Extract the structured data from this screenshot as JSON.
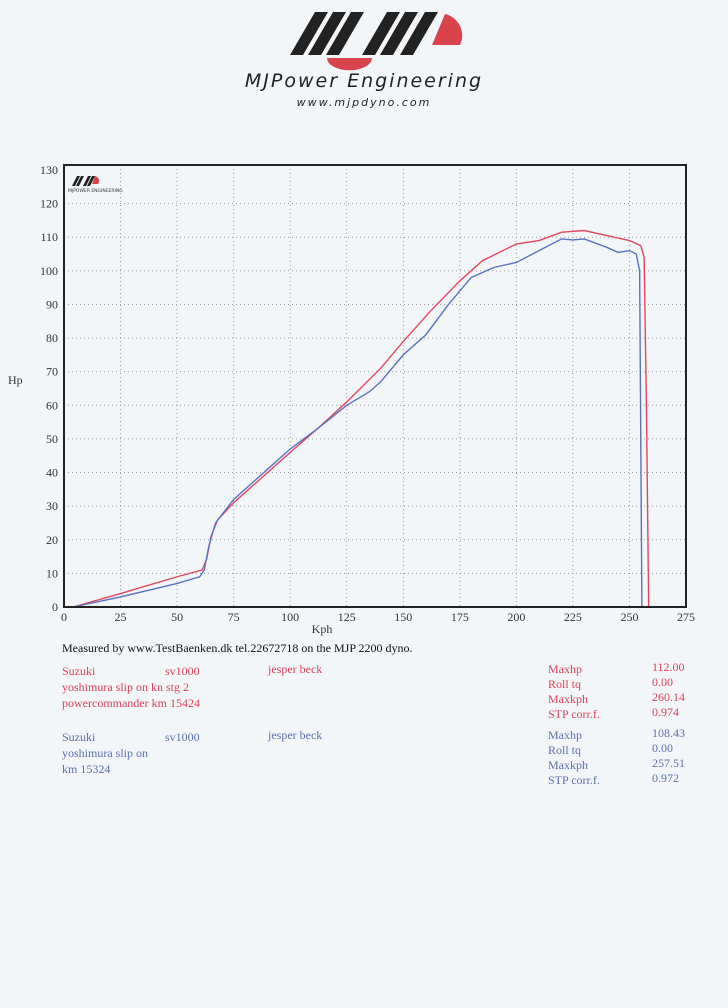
{
  "header": {
    "brand": "MJPower Engineering",
    "url": "www.mjpdyno.com",
    "logo_text": "MJP"
  },
  "chart_data": {
    "type": "line",
    "title": "",
    "xlabel": "Kph",
    "ylabel": "Hp",
    "xlim": [
      0,
      275
    ],
    "ylim": [
      0,
      130
    ],
    "grid": true,
    "x_ticks": [
      0,
      25,
      50,
      75,
      100,
      125,
      150,
      175,
      200,
      225,
      250,
      275
    ],
    "y_ticks": [
      0,
      10,
      20,
      30,
      40,
      50,
      60,
      70,
      80,
      90,
      100,
      110,
      120,
      130
    ],
    "watermark": "MJPower Engineering",
    "colors": {
      "red": "#e0475f",
      "blue": "#5a72c0"
    },
    "series": [
      {
        "color": "red",
        "points": [
          [
            4,
            0
          ],
          [
            25,
            4
          ],
          [
            50,
            9
          ],
          [
            61,
            11
          ],
          [
            63,
            14
          ],
          [
            65,
            21
          ],
          [
            68,
            26
          ],
          [
            75,
            31
          ],
          [
            90,
            40
          ],
          [
            100,
            46
          ],
          [
            112,
            53
          ],
          [
            125,
            61
          ],
          [
            140,
            71
          ],
          [
            150,
            79
          ],
          [
            162,
            88
          ],
          [
            175,
            97
          ],
          [
            185,
            103
          ],
          [
            200,
            108
          ],
          [
            210,
            109
          ],
          [
            220,
            111.5
          ],
          [
            230,
            112
          ],
          [
            240,
            110.5
          ],
          [
            250,
            109
          ],
          [
            255,
            107.5
          ],
          [
            256.5,
            104
          ],
          [
            257.5,
            60
          ],
          [
            258.5,
            0
          ]
        ]
      },
      {
        "color": "blue",
        "points": [
          [
            4,
            0
          ],
          [
            25,
            3
          ],
          [
            50,
            7
          ],
          [
            60,
            9
          ],
          [
            62,
            11
          ],
          [
            64,
            18
          ],
          [
            67,
            25
          ],
          [
            75,
            32
          ],
          [
            90,
            41
          ],
          [
            100,
            47
          ],
          [
            112,
            53
          ],
          [
            125,
            60
          ],
          [
            135,
            64
          ],
          [
            140,
            67
          ],
          [
            150,
            75
          ],
          [
            160,
            81
          ],
          [
            170,
            90
          ],
          [
            180,
            98
          ],
          [
            190,
            101
          ],
          [
            200,
            102.5
          ],
          [
            210,
            106
          ],
          [
            220,
            109.5
          ],
          [
            225,
            109.2
          ],
          [
            230,
            109.5
          ],
          [
            240,
            107
          ],
          [
            245,
            105.5
          ],
          [
            250,
            106
          ],
          [
            253,
            105
          ],
          [
            254.5,
            100
          ],
          [
            255.5,
            0
          ]
        ]
      }
    ]
  },
  "footer": {
    "measured": "Measured by www.TestBaenken.dk tel.22672718 on the MJP 2200 dyno.",
    "runs": [
      {
        "make": "Suzuki",
        "model": "sv1000",
        "owner": "jesper beck",
        "line2": "yoshimura slip on kn stg 2",
        "line3": "powercommander  km 15424",
        "stats": [
          [
            "Maxhp",
            "112.00"
          ],
          [
            "Roll tq",
            "0.00"
          ],
          [
            "Maxkph",
            "260.14"
          ],
          [
            "STP corr.f.",
            "0.974"
          ]
        ]
      },
      {
        "make": "Suzuki",
        "model": "sv1000",
        "owner": "jesper beck",
        "line2": "yoshimura slip on",
        "line3": "km 15324",
        "stats": [
          [
            "Maxhp",
            "108.43"
          ],
          [
            "Roll tq",
            "0.00"
          ],
          [
            "Maxkph",
            "257.51"
          ],
          [
            "STP corr.f.",
            "0.972"
          ]
        ]
      }
    ]
  }
}
